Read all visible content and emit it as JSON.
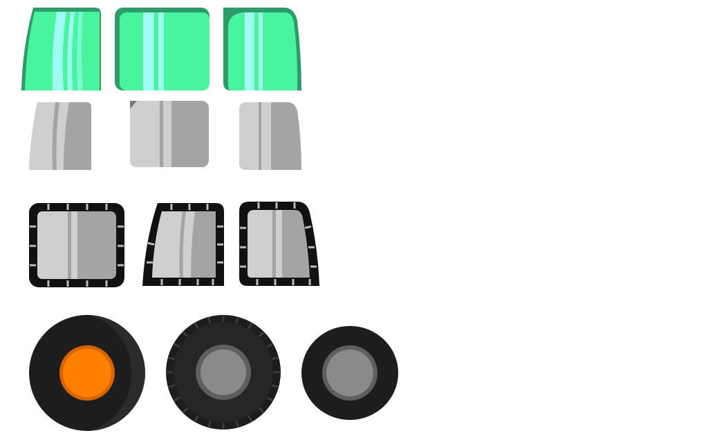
{
  "sprite_sheet": {
    "background": "#ffffff",
    "rows": [
      {
        "name": "cab-windows-glass",
        "colors": {
          "dark": "#2e9c68",
          "mid": "#48f59e",
          "light": "#9ffcf3"
        },
        "sprites": [
          {
            "name": "window-slanted-front",
            "icon": "cab-window-front"
          },
          {
            "name": "window-square",
            "icon": "cab-window-side"
          },
          {
            "name": "window-rounded-back",
            "icon": "cab-window-rear"
          }
        ]
      },
      {
        "name": "cab-windows-grey",
        "colors": {
          "dark": "#7a7a7a",
          "mid": "#a4a4a4",
          "light": "#cfcfcf"
        },
        "sprites": [
          {
            "name": "grey-window-slanted-front",
            "icon": "cab-window-front"
          },
          {
            "name": "grey-window-square",
            "icon": "cab-window-side"
          },
          {
            "name": "grey-window-rounded-back",
            "icon": "cab-window-rear"
          }
        ]
      },
      {
        "name": "cab-windows-framed",
        "colors": {
          "frame": "#111111",
          "tick": "#bdbdbd",
          "mid": "#a4a4a4",
          "light": "#cfcfcf"
        },
        "sprites": [
          {
            "name": "framed-window-square",
            "icon": "framed-window-side"
          },
          {
            "name": "framed-window-slanted-front",
            "icon": "framed-window-front"
          },
          {
            "name": "framed-window-rounded-back",
            "icon": "framed-window-rear"
          }
        ]
      },
      {
        "name": "wheels",
        "colors": {
          "tyre": "#1d1d1d",
          "tyre_shade": "#2b2b2b",
          "tread": "#3c3c3c",
          "hub_orange": "#ff7f00",
          "hub_orange_rim": "#d86400",
          "hub_grey": "#8a8a8a",
          "hub_grey_rim": "#5f5f5f"
        },
        "sprites": [
          {
            "name": "wheel-orange-hub",
            "icon": "wheel-orange"
          },
          {
            "name": "wheel-treaded-grey-hub",
            "icon": "wheel-treaded"
          },
          {
            "name": "wheel-small-grey-hub",
            "icon": "wheel-small"
          }
        ]
      }
    ]
  }
}
